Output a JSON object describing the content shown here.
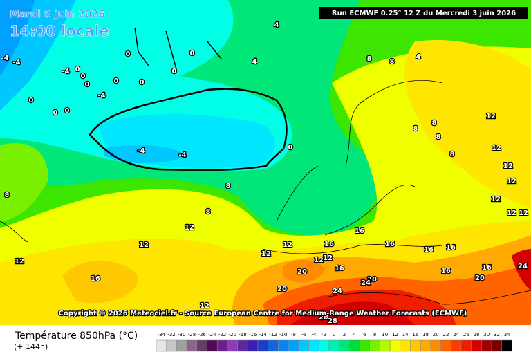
{
  "header": {
    "date": "Mardi 9 juin 2026",
    "time": "14:00 locale",
    "run": "Run ECMWF 0.25° 12 Z du Mercredi 3 juin 2026"
  },
  "copyright": "Copyright © 2026 Meteociel.fr - Source European Centre for Medium-Range Weather Forecasts (ECMWF)",
  "legend": {
    "title": "Température 850hPa (°C)",
    "subtitle": "(+ 144h)",
    "ticks": [
      -34,
      -32,
      -30,
      -28,
      -26,
      -24,
      -22,
      -20,
      -18,
      -16,
      -14,
      -12,
      -10,
      -8,
      -6,
      -4,
      -2,
      0,
      2,
      4,
      6,
      8,
      10,
      12,
      14,
      16,
      18,
      20,
      22,
      24,
      26,
      28,
      30,
      32,
      34
    ],
    "colors": [
      "#e6e6e6",
      "#c8c8c8",
      "#a0a0a0",
      "#8c648c",
      "#643c64",
      "#500a50",
      "#6e1e8c",
      "#8c3cb4",
      "#5a2aa0",
      "#3c1eb4",
      "#1e3cc8",
      "#1464dc",
      "#0a82f0",
      "#00a0ff",
      "#00c8ff",
      "#00e6ff",
      "#00ffe6",
      "#00f0b4",
      "#00e678",
      "#00dc3c",
      "#3ce600",
      "#78f000",
      "#b4fa00",
      "#f0ff00",
      "#ffe600",
      "#ffc800",
      "#ffaa00",
      "#ff8c00",
      "#ff6400",
      "#ff3c00",
      "#f01e00",
      "#d20000",
      "#a00000",
      "#780000",
      "#000000"
    ]
  },
  "contour_labels": [
    4,
    4,
    4,
    8,
    8,
    0,
    0,
    0,
    0,
    0,
    0,
    0,
    0,
    -4,
    -4,
    0,
    0,
    0,
    -4,
    -4,
    0,
    12,
    12,
    12,
    12,
    12,
    12,
    12,
    8,
    8,
    8,
    8,
    8,
    8,
    8,
    12,
    12,
    12,
    12,
    12,
    16,
    16,
    16,
    16,
    16,
    16,
    12,
    12,
    16,
    16,
    16,
    20,
    20,
    24,
    20,
    24,
    20,
    24,
    12,
    28,
    28,
    -4,
    -4
  ]
}
